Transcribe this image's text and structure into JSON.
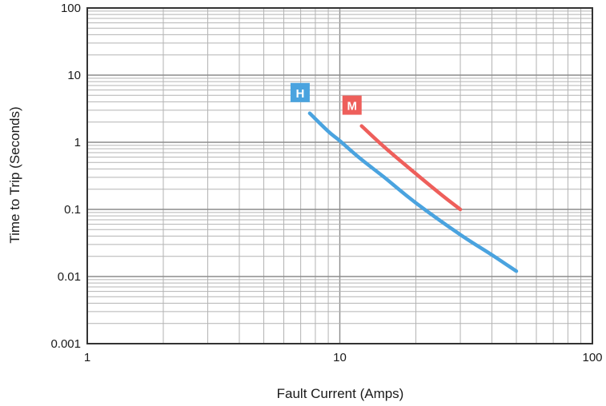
{
  "chart_data": {
    "type": "line",
    "xscale": "log",
    "yscale": "log",
    "xlim": [
      1,
      100
    ],
    "ylim": [
      0.001,
      100
    ],
    "grid": true,
    "xlabel": "Fault Current (Amps)",
    "ylabel": "Time to Trip (Seconds)",
    "x_ticks": [
      "1",
      "10",
      "100"
    ],
    "y_ticks": [
      "0.001",
      "0.01",
      "0.1",
      "1",
      "10",
      "100"
    ],
    "series": [
      {
        "name": "H",
        "color": "#4aa3df",
        "x": [
          7.6,
          9,
          10,
          12,
          15,
          20,
          30,
          40,
          50
        ],
        "y": [
          2.7,
          1.45,
          1.05,
          0.58,
          0.3,
          0.125,
          0.042,
          0.021,
          0.012
        ]
      },
      {
        "name": "M",
        "color": "#ee5f5b",
        "x": [
          12.2,
          15,
          20,
          25,
          30
        ],
        "y": [
          1.75,
          0.85,
          0.34,
          0.17,
          0.1
        ]
      }
    ]
  }
}
